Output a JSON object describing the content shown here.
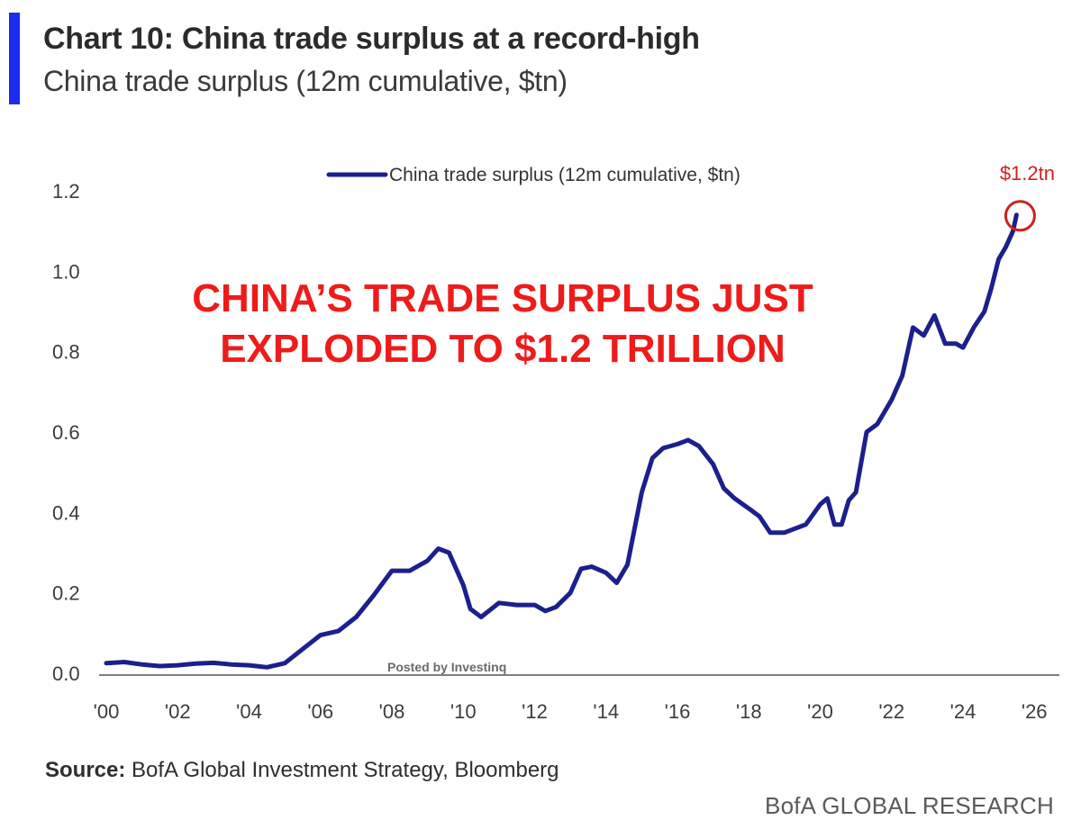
{
  "header": {
    "title": "Chart 10: China trade surplus at a record-high",
    "subtitle": "China trade surplus (12m cumulative, $tn)"
  },
  "headline": {
    "line1": "CHINA’S TRADE SURPLUS JUST",
    "line2": "EXPLODED TO $1.2 TRILLION"
  },
  "watermark": "Posted by Investinq",
  "footer": {
    "source_label": "Source:",
    "source_text": "BofA Global Investment Strategy, Bloomberg",
    "brand": "BofA GLOBAL RESEARCH"
  },
  "colors": {
    "accent": "#1b2cf0",
    "series": "#1c1f8c",
    "highlight": "#d01f1f"
  },
  "chart_data": {
    "type": "line",
    "title": "China trade surplus (12m cumulative, $tn)",
    "xlabel": "",
    "ylabel": "",
    "xlim": [
      2000,
      2026.6
    ],
    "ylim": [
      0,
      1.2
    ],
    "grid": false,
    "legend_position": "top-center",
    "x_ticks": [
      2000,
      2002,
      2004,
      2006,
      2008,
      2010,
      2012,
      2014,
      2016,
      2018,
      2020,
      2022,
      2024,
      2026
    ],
    "x_tick_labels": [
      "'00",
      "'02",
      "'04",
      "'06",
      "'08",
      "'10",
      "'12",
      "'14",
      "'16",
      "'18",
      "'20",
      "'22",
      "'24",
      "'26"
    ],
    "y_ticks": [
      0.0,
      0.2,
      0.4,
      0.6,
      0.8,
      1.0,
      1.2
    ],
    "y_tick_labels": [
      "0.0",
      "0.2",
      "0.4",
      "0.6",
      "0.8",
      "1.0",
      "1.2"
    ],
    "annotation": {
      "label": "$1.2tn",
      "x": 2025.5,
      "y": 1.14
    },
    "series": [
      {
        "name": "China trade surplus (12m cumulative, $tn)",
        "x": [
          2000,
          2000.5,
          2001,
          2001.5,
          2002,
          2002.5,
          2003,
          2003.5,
          2004,
          2004.5,
          2005,
          2005.5,
          2006,
          2006.5,
          2007,
          2007.5,
          2008,
          2008.5,
          2009,
          2009.3,
          2009.6,
          2010,
          2010.2,
          2010.5,
          2011,
          2011.5,
          2012,
          2012.3,
          2012.6,
          2013,
          2013.3,
          2013.6,
          2014,
          2014.3,
          2014.6,
          2015,
          2015.3,
          2015.6,
          2016,
          2016.3,
          2016.6,
          2017,
          2017.3,
          2017.6,
          2018,
          2018.3,
          2018.6,
          2019,
          2019.3,
          2019.6,
          2020,
          2020.2,
          2020.4,
          2020.6,
          2020.8,
          2021,
          2021.3,
          2021.6,
          2022,
          2022.3,
          2022.6,
          2022.9,
          2023.2,
          2023.5,
          2023.8,
          2024,
          2024.3,
          2024.6,
          2024.8,
          2025,
          2025.2,
          2025.4,
          2025.5
        ],
        "values": [
          0.025,
          0.028,
          0.022,
          0.018,
          0.02,
          0.024,
          0.026,
          0.022,
          0.02,
          0.015,
          0.025,
          0.06,
          0.095,
          0.105,
          0.14,
          0.195,
          0.255,
          0.255,
          0.28,
          0.31,
          0.3,
          0.22,
          0.16,
          0.14,
          0.175,
          0.17,
          0.17,
          0.155,
          0.165,
          0.2,
          0.26,
          0.265,
          0.25,
          0.225,
          0.27,
          0.45,
          0.535,
          0.56,
          0.57,
          0.58,
          0.565,
          0.52,
          0.46,
          0.435,
          0.41,
          0.39,
          0.35,
          0.35,
          0.36,
          0.37,
          0.42,
          0.435,
          0.37,
          0.37,
          0.43,
          0.45,
          0.6,
          0.62,
          0.68,
          0.74,
          0.86,
          0.84,
          0.89,
          0.82,
          0.82,
          0.81,
          0.86,
          0.9,
          0.96,
          1.03,
          1.06,
          1.1,
          1.14
        ]
      }
    ]
  }
}
